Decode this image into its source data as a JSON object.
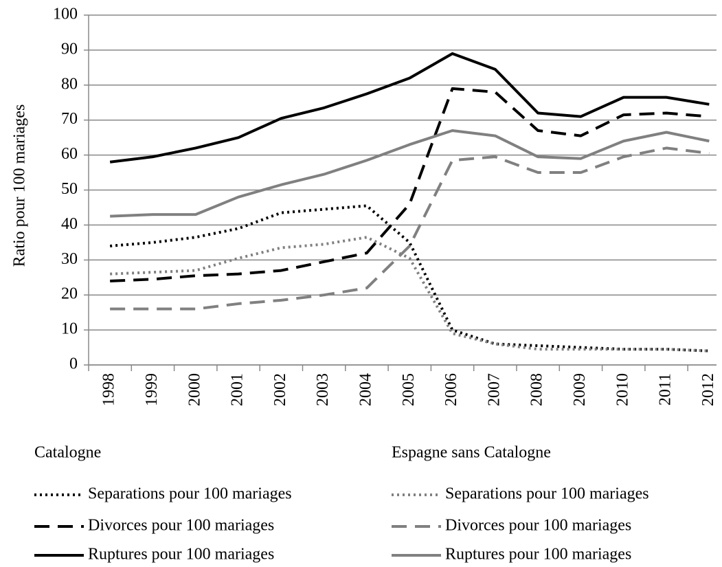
{
  "chart_data": {
    "type": "line",
    "y_label": "Ratio pour 100 mariages",
    "categories": [
      "1998",
      "1999",
      "2000",
      "2001",
      "2002",
      "2003",
      "2004",
      "2005",
      "2006",
      "2007",
      "2008",
      "2009",
      "2010",
      "2011",
      "2012"
    ],
    "ylim": [
      0,
      100
    ],
    "yticks": [
      0,
      10,
      20,
      30,
      40,
      50,
      60,
      70,
      80,
      90,
      100
    ],
    "grid": true,
    "legend_titles": [
      "Catalogne",
      "Espagne sans Catalogne"
    ],
    "series": [
      {
        "name": "Separations pour 100 mariages",
        "color": "#000000",
        "dash": "dotted",
        "values": [
          34,
          35,
          36.5,
          39,
          43.5,
          44.5,
          45.5,
          35,
          10,
          6,
          5.5,
          5,
          4.5,
          4.5,
          4
        ]
      },
      {
        "name": "Divorces pour 100 mariages",
        "color": "#000000",
        "dash": "dashed",
        "values": [
          24,
          24.5,
          25.5,
          26,
          27,
          29.5,
          32,
          46,
          79,
          78,
          67,
          65.5,
          71.5,
          72,
          71
        ]
      },
      {
        "name": "Ruptures pour 100 mariages",
        "color": "#000000",
        "dash": "solid",
        "values": [
          58,
          59.5,
          62,
          65,
          70.5,
          73.5,
          77.5,
          82,
          89,
          84.5,
          72,
          71,
          76.5,
          76.5,
          74.5
        ]
      },
      {
        "name": "Separations pour 100 mariages",
        "color": "#808080",
        "dash": "dotted",
        "values": [
          26,
          26.5,
          27,
          30.5,
          33.5,
          34.5,
          36.5,
          30.5,
          9,
          6,
          4.5,
          4.5,
          4.5,
          4.5,
          4
        ]
      },
      {
        "name": "Divorces pour 100 mariages",
        "color": "#808080",
        "dash": "dashed",
        "values": [
          16,
          16,
          16,
          17.5,
          18.5,
          20,
          22,
          34,
          58.5,
          59.5,
          55,
          55,
          59.5,
          62,
          60.5
        ]
      },
      {
        "name": "Ruptures pour 100 mariages",
        "color": "#808080",
        "dash": "solid",
        "values": [
          42.5,
          43,
          43,
          48,
          51.5,
          54.5,
          58.5,
          63,
          67,
          65.5,
          59.5,
          59,
          64,
          66.5,
          64
        ]
      }
    ]
  }
}
